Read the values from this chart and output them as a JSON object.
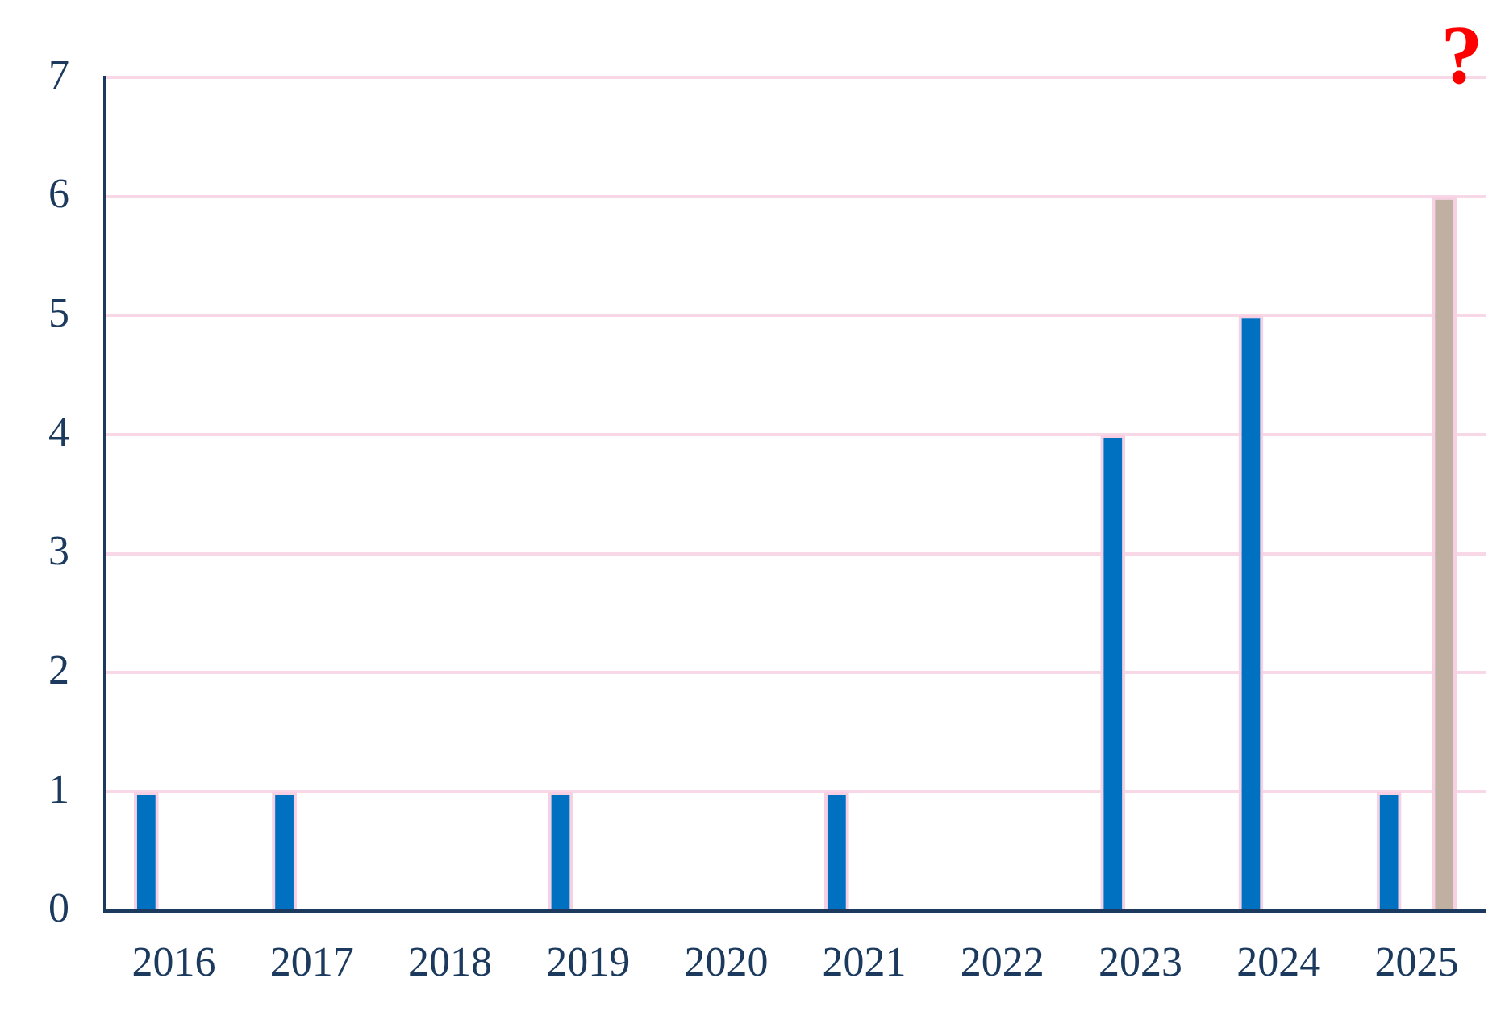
{
  "chart_data": {
    "type": "bar",
    "categories": [
      "2016",
      "2017",
      "2018",
      "2019",
      "2020",
      "2021",
      "2022",
      "2023",
      "2024",
      "2025"
    ],
    "series": [
      {
        "color": "#0070c0",
        "values": [
          1,
          1,
          0,
          1,
          0,
          1,
          0,
          4,
          5,
          1
        ]
      },
      {
        "color": "#c0b0a2",
        "values": [
          null,
          null,
          null,
          null,
          null,
          null,
          null,
          null,
          null,
          6
        ]
      }
    ],
    "ylim": [
      0,
      7
    ],
    "yticks": [
      0,
      1,
      2,
      3,
      4,
      5,
      6,
      7
    ],
    "grid": "y",
    "legend": false,
    "annotations": [
      "?"
    ]
  }
}
